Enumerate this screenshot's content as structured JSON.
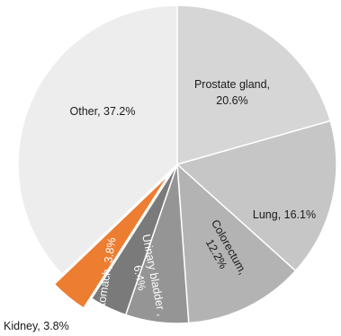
{
  "chart_data": {
    "type": "pie",
    "title": "",
    "slices": [
      {
        "label": "Prostate gland, 20.6%",
        "lines": [
          "Prostate gland,",
          "20.6%"
        ],
        "value": 20.6,
        "color": "#d6d6d6"
      },
      {
        "label": "Lung, 16.1%",
        "lines": [
          "Lung, 16.1%"
        ],
        "value": 16.1,
        "color": "#c6c6c6"
      },
      {
        "label": "Colorectum, 12.2%",
        "lines": [
          "Colorectum,",
          "12.2%"
        ],
        "value": 12.2,
        "color": "#b3b3b3"
      },
      {
        "label": "Urinary bladder , 6.4%",
        "lines": [
          "Urinary bladder ,",
          "6.4%"
        ],
        "value": 6.4,
        "color": "#959595"
      },
      {
        "label": "Stomach, 3.8%",
        "lines": [
          "Stomach, 3.8%"
        ],
        "value": 3.8,
        "color": "#7a7a7a"
      },
      {
        "label": "Kidney, 3.8%",
        "lines": [
          "Kidney, 3.8%"
        ],
        "value": 3.8,
        "color": "#ed7d31",
        "exploded": true
      },
      {
        "label": "Other, 37.2%",
        "lines": [
          "Other, 37.2%"
        ],
        "value": 37.2,
        "color": "#ededed"
      }
    ]
  }
}
